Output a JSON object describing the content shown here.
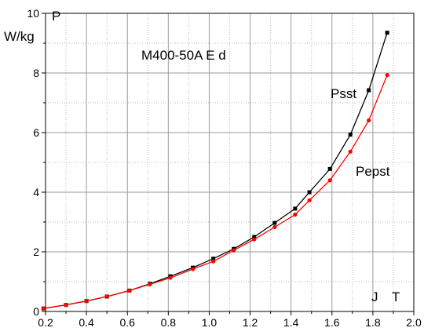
{
  "chart_data": {
    "type": "line",
    "title": "M400-50A E  d",
    "ylabel_symbol": "P",
    "ylabel_unit": "W/kg",
    "xlabel_symbol": "J",
    "xlabel_unit": "T",
    "xlim": [
      0.2,
      2.0
    ],
    "ylim": [
      0,
      10
    ],
    "xticks": [
      0.2,
      0.4,
      0.6,
      0.8,
      1.0,
      1.2,
      1.4,
      1.6,
      1.8,
      2.0
    ],
    "yticks": [
      0,
      2,
      4,
      6,
      8,
      10
    ],
    "grid": true,
    "series": [
      {
        "name": "Psst",
        "color": "#000000",
        "marker": "square",
        "x": [
          0.19,
          0.3,
          0.4,
          0.5,
          0.61,
          0.71,
          0.81,
          0.92,
          1.02,
          1.12,
          1.22,
          1.32,
          1.42,
          1.49,
          1.59,
          1.69,
          1.78,
          1.87
        ],
        "y": [
          0.1,
          0.22,
          0.35,
          0.5,
          0.7,
          0.93,
          1.18,
          1.47,
          1.77,
          2.1,
          2.5,
          2.97,
          3.45,
          4.0,
          4.78,
          5.93,
          7.42,
          9.35
        ]
      },
      {
        "name": "Pepst",
        "color": "#ff0000",
        "marker": "circle",
        "x": [
          0.19,
          0.3,
          0.4,
          0.5,
          0.61,
          0.71,
          0.81,
          0.92,
          1.02,
          1.12,
          1.22,
          1.32,
          1.42,
          1.49,
          1.59,
          1.69,
          1.78,
          1.87
        ],
        "y": [
          0.1,
          0.22,
          0.35,
          0.5,
          0.7,
          0.91,
          1.13,
          1.42,
          1.68,
          2.05,
          2.42,
          2.83,
          3.25,
          3.73,
          4.4,
          5.36,
          6.41,
          7.93
        ]
      }
    ]
  }
}
